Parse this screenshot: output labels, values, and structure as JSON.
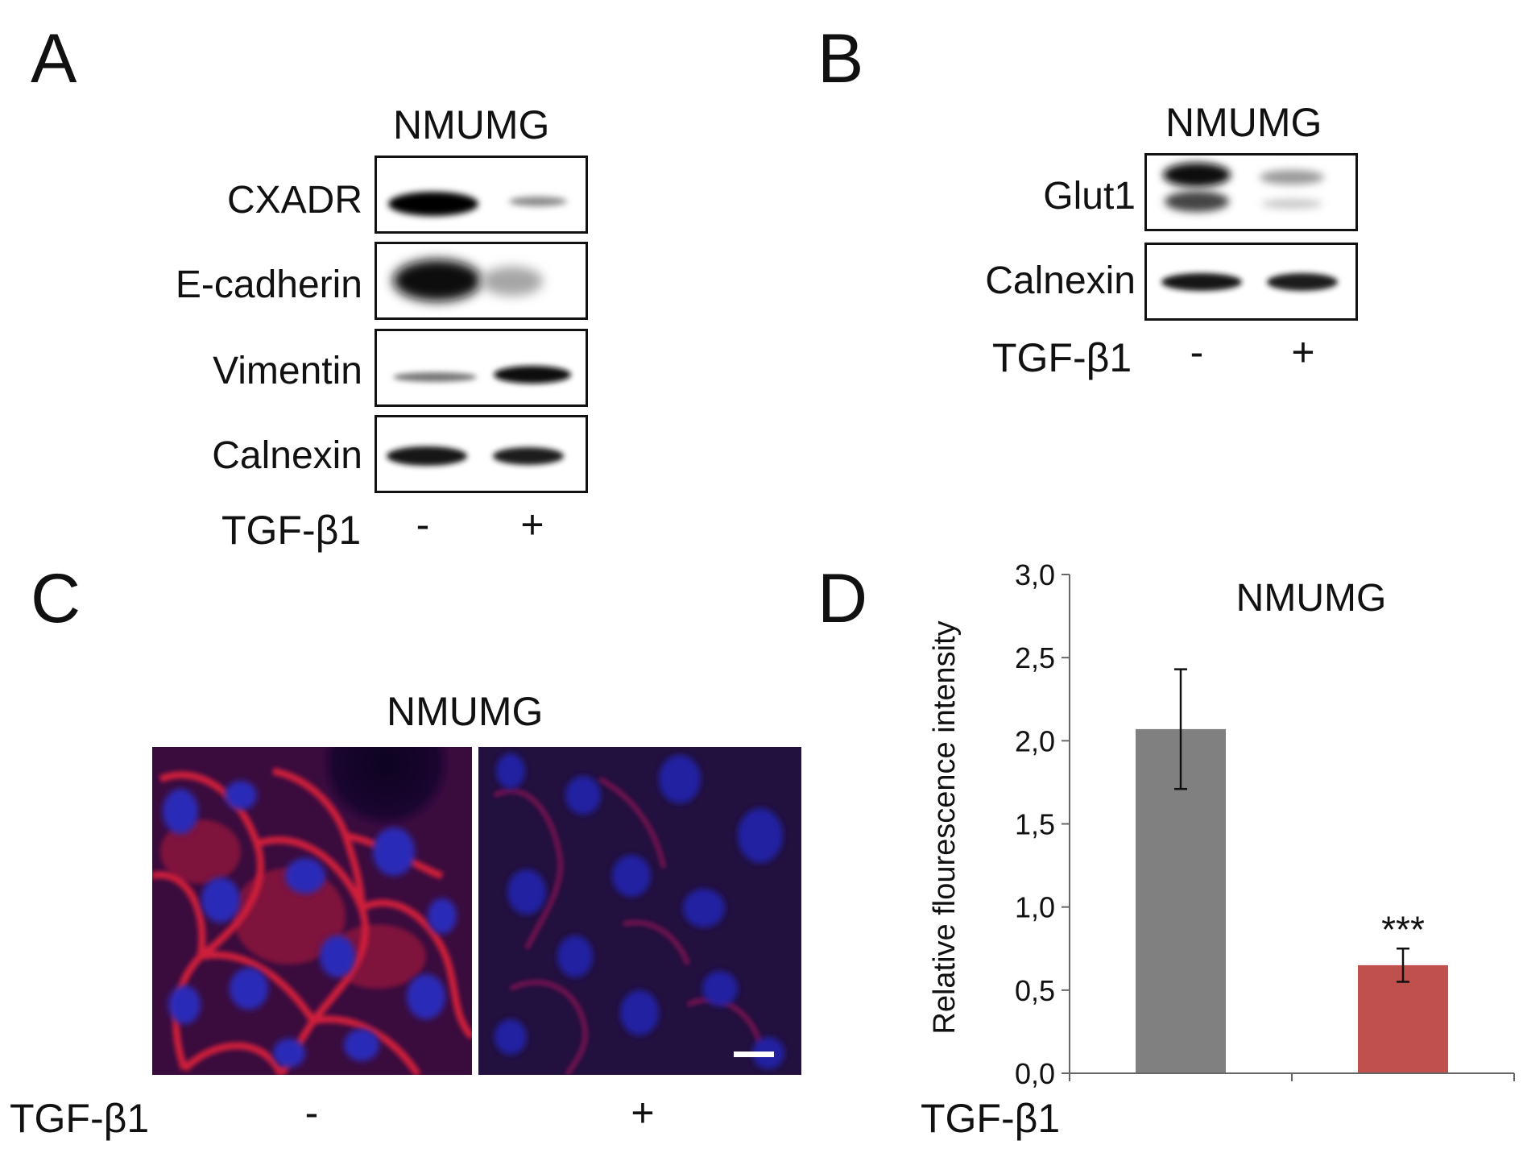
{
  "panels": {
    "a": {
      "letter": "A",
      "title": "NMUMG",
      "rows": [
        {
          "label": "CXADR"
        },
        {
          "label": "E-cadherin"
        },
        {
          "label": "Vimentin"
        },
        {
          "label": "Calnexin"
        }
      ],
      "treatment_label": "TGF-β1",
      "minus": "-",
      "plus": "+"
    },
    "b": {
      "letter": "B",
      "title": "NMUMG",
      "rows": [
        {
          "label": "Glut1"
        },
        {
          "label": "Calnexin"
        }
      ],
      "treatment_label": "TGF-β1",
      "minus": "-",
      "plus": "+"
    },
    "c": {
      "letter": "C",
      "title": "NMUMG",
      "treatment_label": "TGF-β1",
      "minus": "-",
      "plus": "+"
    },
    "d": {
      "letter": "D",
      "treatment_label": "TGF-β1"
    }
  },
  "chart_data": {
    "type": "bar",
    "title": "NMUMG",
    "xlabel": "TGF-β1",
    "ylabel": "Relative flourescence intensity",
    "categories": [
      "-",
      "+"
    ],
    "values": [
      2.07,
      0.65
    ],
    "errors": [
      0.36,
      0.1
    ],
    "bar_colors": [
      "#808080",
      "#c0504d"
    ],
    "annotations": [
      {
        "category": "+",
        "text": "***"
      }
    ],
    "ylim": [
      0,
      3.0
    ],
    "yticks": [
      "0,0",
      "0,5",
      "1,0",
      "1,5",
      "2,0",
      "2,5",
      "3,0"
    ],
    "ytick_values": [
      0,
      0.5,
      1.0,
      1.5,
      2.0,
      2.5,
      3.0
    ],
    "grid": false,
    "legend": "none"
  }
}
